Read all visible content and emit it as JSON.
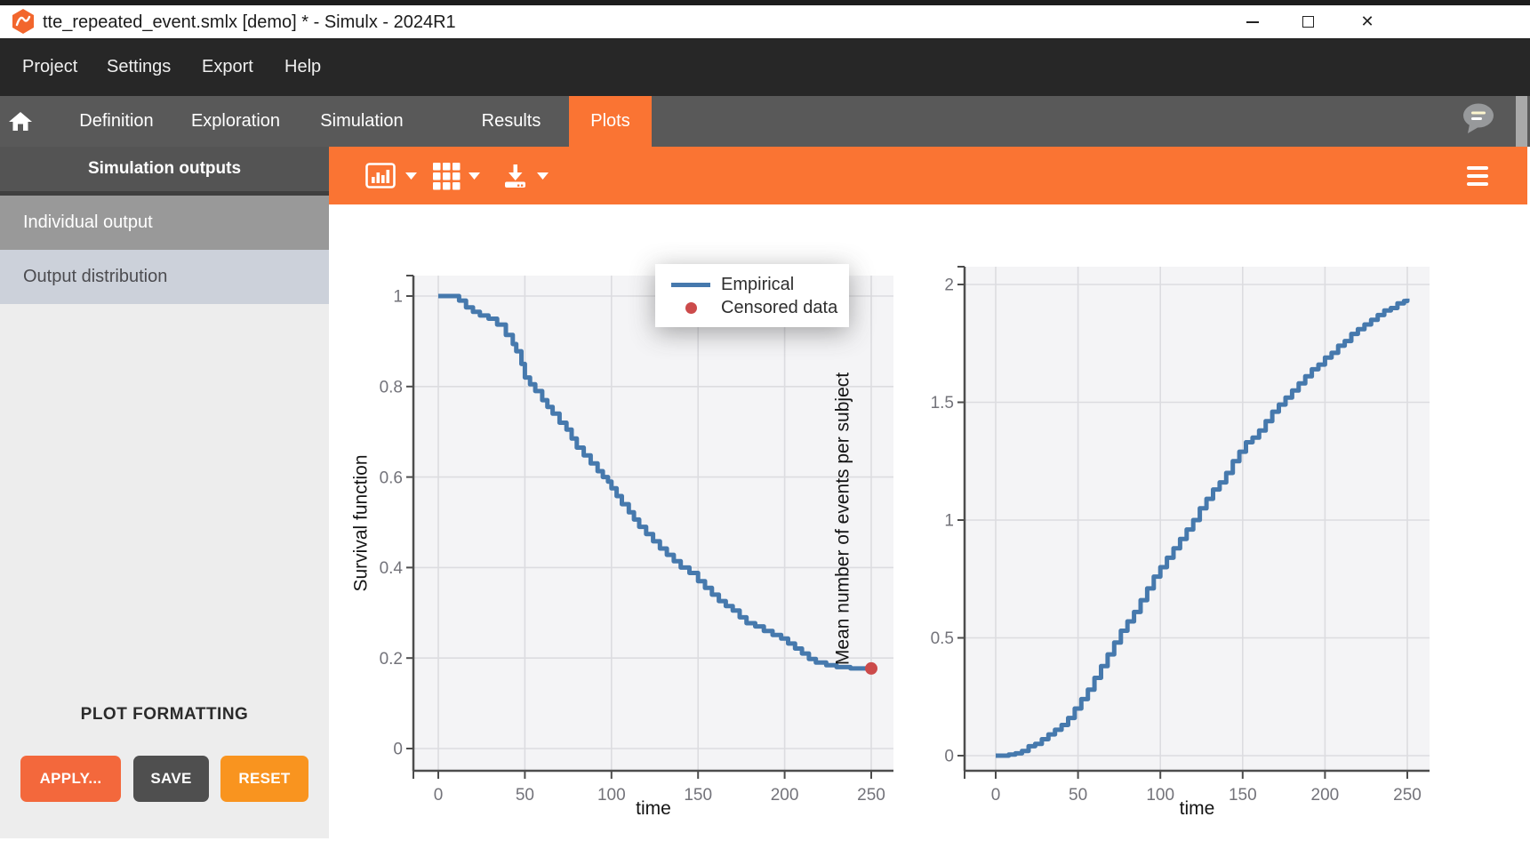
{
  "window": {
    "title": "tte_repeated_event.smlx [demo] * - Simulx - 2024R1",
    "close_glyph": "✕"
  },
  "menu": {
    "items": [
      {
        "label": "Project"
      },
      {
        "label": "Settings"
      },
      {
        "label": "Export"
      },
      {
        "label": "Help"
      }
    ]
  },
  "tabs": {
    "items": [
      {
        "label": "Definition"
      },
      {
        "label": "Exploration"
      },
      {
        "label": "Simulation"
      },
      {
        "label": "Results"
      },
      {
        "label": "Plots"
      }
    ],
    "active_tab": "Plots"
  },
  "sidebar": {
    "header": "Simulation outputs",
    "items": [
      {
        "label": "Individual output",
        "selected": true
      },
      {
        "label": "Output distribution",
        "selected": false
      }
    ],
    "plot_formatting": {
      "title": "PLOT FORMATTING",
      "buttons": [
        {
          "label": "APPLY..."
        },
        {
          "label": "SAVE"
        },
        {
          "label": "RESET"
        }
      ]
    }
  },
  "toolbar": {
    "icons": [
      "plot-type",
      "layout-grid",
      "download"
    ],
    "menu_icon": "hamburger"
  },
  "colors": {
    "accent_orange": "#fa7433",
    "apply_orange": "#f3683c",
    "reset_orange": "#f9941f",
    "dark_button": "#4f4f4f",
    "empirical_blue": "#4679ad",
    "censored_red": "#cc4b4b",
    "menubar": "#272727",
    "tabbar": "#595959",
    "selected_item_bg": "#999999",
    "alt_item_bg": "#ccd1da",
    "sidebar_bg": "#ededed",
    "plot_bg": "#f4f4f6",
    "grid_line": "#dcdce0"
  },
  "chart_data": [
    {
      "type": "line",
      "subtype": "step",
      "title": "",
      "xlabel": "time",
      "ylabel": "Survival function",
      "xticks": [
        0,
        50,
        100,
        150,
        200,
        250
      ],
      "yticks": [
        0,
        0.2,
        0.4,
        0.6,
        0.8,
        1
      ],
      "xlim": [
        -14,
        263
      ],
      "ylim": [
        -0.05,
        1.045
      ],
      "grid": true,
      "legend": {
        "position": "top-center",
        "entries": [
          "Empirical",
          "Censored data"
        ]
      },
      "series": [
        {
          "name": "Empirical",
          "type": "step",
          "color": "#4679ad",
          "x": [
            0,
            9,
            12,
            16,
            20,
            24,
            29,
            34,
            39,
            43,
            45,
            48,
            50,
            53,
            56,
            60,
            63,
            66,
            70,
            74,
            77,
            80,
            84,
            88,
            92,
            95,
            98,
            100,
            103,
            106,
            110,
            113,
            116,
            120,
            124,
            128,
            132,
            136,
            140,
            145,
            150,
            154,
            158,
            162,
            166,
            170,
            174,
            178,
            183,
            188,
            193,
            198,
            202,
            206,
            210,
            214,
            218,
            224,
            230,
            238,
            250
          ],
          "y": [
            1.0,
            1.0,
            0.99,
            0.975,
            0.965,
            0.957,
            0.95,
            0.937,
            0.914,
            0.894,
            0.878,
            0.85,
            0.82,
            0.805,
            0.79,
            0.77,
            0.755,
            0.74,
            0.72,
            0.705,
            0.685,
            0.665,
            0.648,
            0.63,
            0.613,
            0.6,
            0.59,
            0.575,
            0.558,
            0.54,
            0.522,
            0.506,
            0.49,
            0.474,
            0.458,
            0.442,
            0.428,
            0.414,
            0.4,
            0.388,
            0.37,
            0.355,
            0.34,
            0.326,
            0.315,
            0.305,
            0.29,
            0.277,
            0.27,
            0.26,
            0.251,
            0.243,
            0.232,
            0.221,
            0.21,
            0.198,
            0.19,
            0.184,
            0.18,
            0.177,
            0.177
          ]
        },
        {
          "name": "Censored data",
          "type": "scatter",
          "color": "#cc4b4b",
          "x": [
            250
          ],
          "y": [
            0.177
          ]
        }
      ]
    },
    {
      "type": "line",
      "subtype": "step",
      "title": "",
      "xlabel": "time",
      "ylabel": "Mean number of events per subject",
      "xticks": [
        0,
        50,
        100,
        150,
        200,
        250
      ],
      "yticks": [
        0,
        0.5,
        1,
        1.5,
        2
      ],
      "xlim": [
        -19,
        264
      ],
      "ylim": [
        -0.06,
        2.08
      ],
      "grid": true,
      "legend": {
        "position": "none",
        "entries": []
      },
      "series": [
        {
          "name": "Mean number of events",
          "type": "step",
          "color": "#4679ad",
          "x": [
            0,
            8,
            12,
            16,
            20,
            24,
            28,
            32,
            36,
            40,
            44,
            48,
            52,
            56,
            60,
            64,
            68,
            72,
            76,
            80,
            84,
            88,
            92,
            96,
            100,
            104,
            108,
            112,
            116,
            120,
            124,
            128,
            132,
            136,
            140,
            144,
            148,
            152,
            156,
            160,
            164,
            168,
            172,
            176,
            180,
            184,
            188,
            192,
            196,
            200,
            204,
            208,
            212,
            216,
            220,
            224,
            228,
            232,
            236,
            240,
            244,
            248,
            250
          ],
          "y": [
            0,
            0.005,
            0.01,
            0.02,
            0.04,
            0.05,
            0.07,
            0.09,
            0.11,
            0.13,
            0.16,
            0.2,
            0.24,
            0.28,
            0.33,
            0.38,
            0.43,
            0.48,
            0.53,
            0.57,
            0.61,
            0.66,
            0.71,
            0.76,
            0.8,
            0.84,
            0.88,
            0.92,
            0.96,
            1.0,
            1.05,
            1.09,
            1.13,
            1.16,
            1.2,
            1.25,
            1.29,
            1.33,
            1.35,
            1.38,
            1.42,
            1.46,
            1.49,
            1.52,
            1.55,
            1.58,
            1.61,
            1.64,
            1.66,
            1.69,
            1.71,
            1.74,
            1.76,
            1.79,
            1.81,
            1.83,
            1.85,
            1.87,
            1.89,
            1.9,
            1.92,
            1.93,
            1.94
          ]
        }
      ]
    }
  ]
}
